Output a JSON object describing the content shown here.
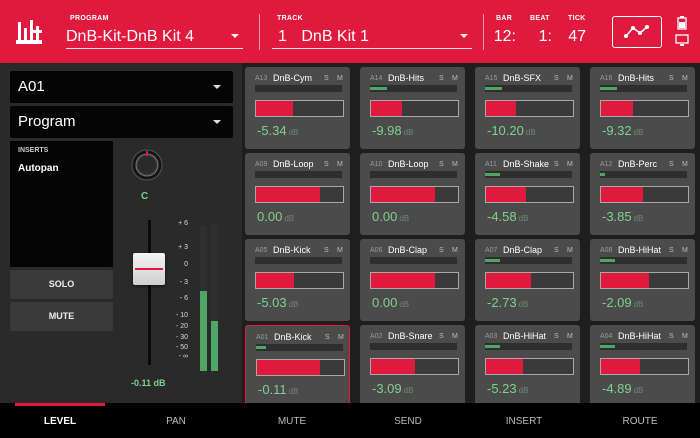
{
  "header": {
    "program_label": "PROGRAM",
    "program_value": "DnB-Kit-DnB Kit 4",
    "track_label": "TRACK",
    "track_number": "1",
    "track_name": "DnB Kit 1",
    "bar_label": "BAR",
    "bar_value": "12:",
    "beat_label": "BEAT",
    "beat_value": "1:",
    "tick_label": "TICK",
    "tick_value": "47",
    "accent_color": "#e01a3e"
  },
  "left": {
    "pad_select": "A01",
    "mode_select": "Program",
    "inserts_title": "INSERTS",
    "insert_item": "Autopan",
    "solo_label": "SOLO",
    "mute_label": "MUTE",
    "pan_value": "C",
    "volume_value": "-0.11 dB",
    "scale": [
      "+ 6",
      "+ 3",
      "0",
      "- 3",
      "- 6",
      "- 10",
      "- 20",
      "- 30",
      "- 50",
      "- ∞"
    ],
    "meter_levels": [
      0.55,
      0.34
    ]
  },
  "pads": [
    {
      "id": "A13",
      "name": "DnB-Cym",
      "s": "S",
      "m": "M",
      "db": "-5.34",
      "unit": "dB",
      "level": 0.0,
      "volume": 0.43
    },
    {
      "id": "A14",
      "name": "DnB-Hits",
      "s": "S",
      "m": "M",
      "db": "-9.98",
      "unit": "dB",
      "level": 0.2,
      "volume": 0.36
    },
    {
      "id": "A15",
      "name": "DnB-SFX",
      "s": "S",
      "m": "M",
      "db": "-10.20",
      "unit": "dB",
      "level": 0.2,
      "volume": 0.35
    },
    {
      "id": "A16",
      "name": "DnB-Hits",
      "s": "S",
      "m": "M",
      "db": "-9.32",
      "unit": "dB",
      "level": 0.2,
      "volume": 0.37
    },
    {
      "id": "A09",
      "name": "DnB-Loop",
      "s": "S",
      "m": "M",
      "db": "0.00",
      "unit": "dB",
      "level": 0.0,
      "volume": 0.73
    },
    {
      "id": "A10",
      "name": "DnB-Loop",
      "s": "S",
      "m": "M",
      "db": "0.00",
      "unit": "dB",
      "level": 0.0,
      "volume": 0.73
    },
    {
      "id": "A11",
      "name": "DnB-Shaker",
      "s": "S",
      "m": "M",
      "db": "-4.58",
      "unit": "dB",
      "level": 0.17,
      "volume": 0.46
    },
    {
      "id": "A12",
      "name": "DnB-Perc",
      "s": "S",
      "m": "M",
      "db": "-3.85",
      "unit": "dB",
      "level": 0.06,
      "volume": 0.48
    },
    {
      "id": "A05",
      "name": "DnB-Kick",
      "s": "S",
      "m": "M",
      "db": "-5.03",
      "unit": "dB",
      "level": 0.0,
      "volume": 0.44
    },
    {
      "id": "A06",
      "name": "DnB-Clap",
      "s": "S",
      "m": "M",
      "db": "0.00",
      "unit": "dB",
      "level": 0.0,
      "volume": 0.73
    },
    {
      "id": "A07",
      "name": "DnB-Clap",
      "s": "S",
      "m": "M",
      "db": "-2.73",
      "unit": "dB",
      "level": 0.17,
      "volume": 0.52
    },
    {
      "id": "A08",
      "name": "DnB-HiHat",
      "s": "S",
      "m": "M",
      "db": "-2.09",
      "unit": "dB",
      "level": 0.17,
      "volume": 0.55
    },
    {
      "id": "A01",
      "name": "DnB-Kick",
      "s": "S",
      "m": "M",
      "db": "-0.11",
      "unit": "dB",
      "level": 0.12,
      "volume": 0.72
    },
    {
      "id": "A02",
      "name": "DnB-Snare",
      "s": "S",
      "m": "M",
      "db": "-3.09",
      "unit": "dB",
      "level": 0.0,
      "volume": 0.51
    },
    {
      "id": "A03",
      "name": "DnB-HiHat",
      "s": "S",
      "m": "M",
      "db": "-5.23",
      "unit": "dB",
      "level": 0.17,
      "volume": 0.43
    },
    {
      "id": "A04",
      "name": "DnB-HiHat",
      "s": "S",
      "m": "M",
      "db": "-4.89",
      "unit": "dB",
      "level": 0.17,
      "volume": 0.45
    }
  ],
  "footer": {
    "tabs": [
      "LEVEL",
      "PAN",
      "MUTE",
      "SEND",
      "INSERT",
      "ROUTE"
    ],
    "active": "LEVEL"
  }
}
